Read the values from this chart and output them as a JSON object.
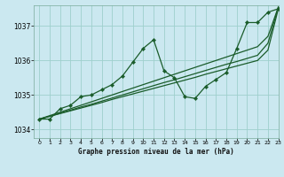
{
  "title": "Graphe pression niveau de la mer (hPa)",
  "bg_color": "#cbe8f0",
  "grid_color": "#9ecfcd",
  "line_color": "#1a5c2a",
  "xlim": [
    -0.5,
    23
  ],
  "ylim": [
    1033.75,
    1037.6
  ],
  "yticks": [
    1034,
    1035,
    1036,
    1037
  ],
  "xticks": [
    0,
    1,
    2,
    3,
    4,
    5,
    6,
    7,
    8,
    9,
    10,
    11,
    12,
    13,
    14,
    15,
    16,
    17,
    18,
    19,
    20,
    21,
    22,
    23
  ],
  "y_zigzag": [
    1034.3,
    1034.3,
    1034.6,
    1034.7,
    1034.95,
    1035.0,
    1035.15,
    1035.3,
    1035.55,
    1035.95,
    1036.35,
    1036.6,
    1035.7,
    1035.5,
    1034.95,
    1034.9,
    1035.25,
    1035.45,
    1035.65,
    1036.35,
    1037.1,
    1037.1,
    1037.4,
    1037.5
  ],
  "y_straight1": [
    1034.3,
    1034.38,
    1034.46,
    1034.54,
    1034.62,
    1034.7,
    1034.78,
    1034.87,
    1034.95,
    1035.03,
    1035.11,
    1035.19,
    1035.27,
    1035.35,
    1035.43,
    1035.51,
    1035.6,
    1035.68,
    1035.76,
    1035.84,
    1035.92,
    1036.0,
    1036.3,
    1037.5
  ],
  "y_straight2": [
    1034.3,
    1034.38,
    1034.47,
    1034.56,
    1034.65,
    1034.73,
    1034.82,
    1034.91,
    1035.0,
    1035.09,
    1035.18,
    1035.27,
    1035.36,
    1035.44,
    1035.53,
    1035.62,
    1035.71,
    1035.8,
    1035.89,
    1035.97,
    1036.06,
    1036.15,
    1036.5,
    1037.55
  ],
  "y_straight3": [
    1034.3,
    1034.4,
    1034.5,
    1034.6,
    1034.7,
    1034.8,
    1034.9,
    1035.0,
    1035.1,
    1035.2,
    1035.3,
    1035.4,
    1035.5,
    1035.6,
    1035.7,
    1035.8,
    1035.9,
    1036.0,
    1036.1,
    1036.2,
    1036.3,
    1036.4,
    1036.7,
    1037.55
  ]
}
